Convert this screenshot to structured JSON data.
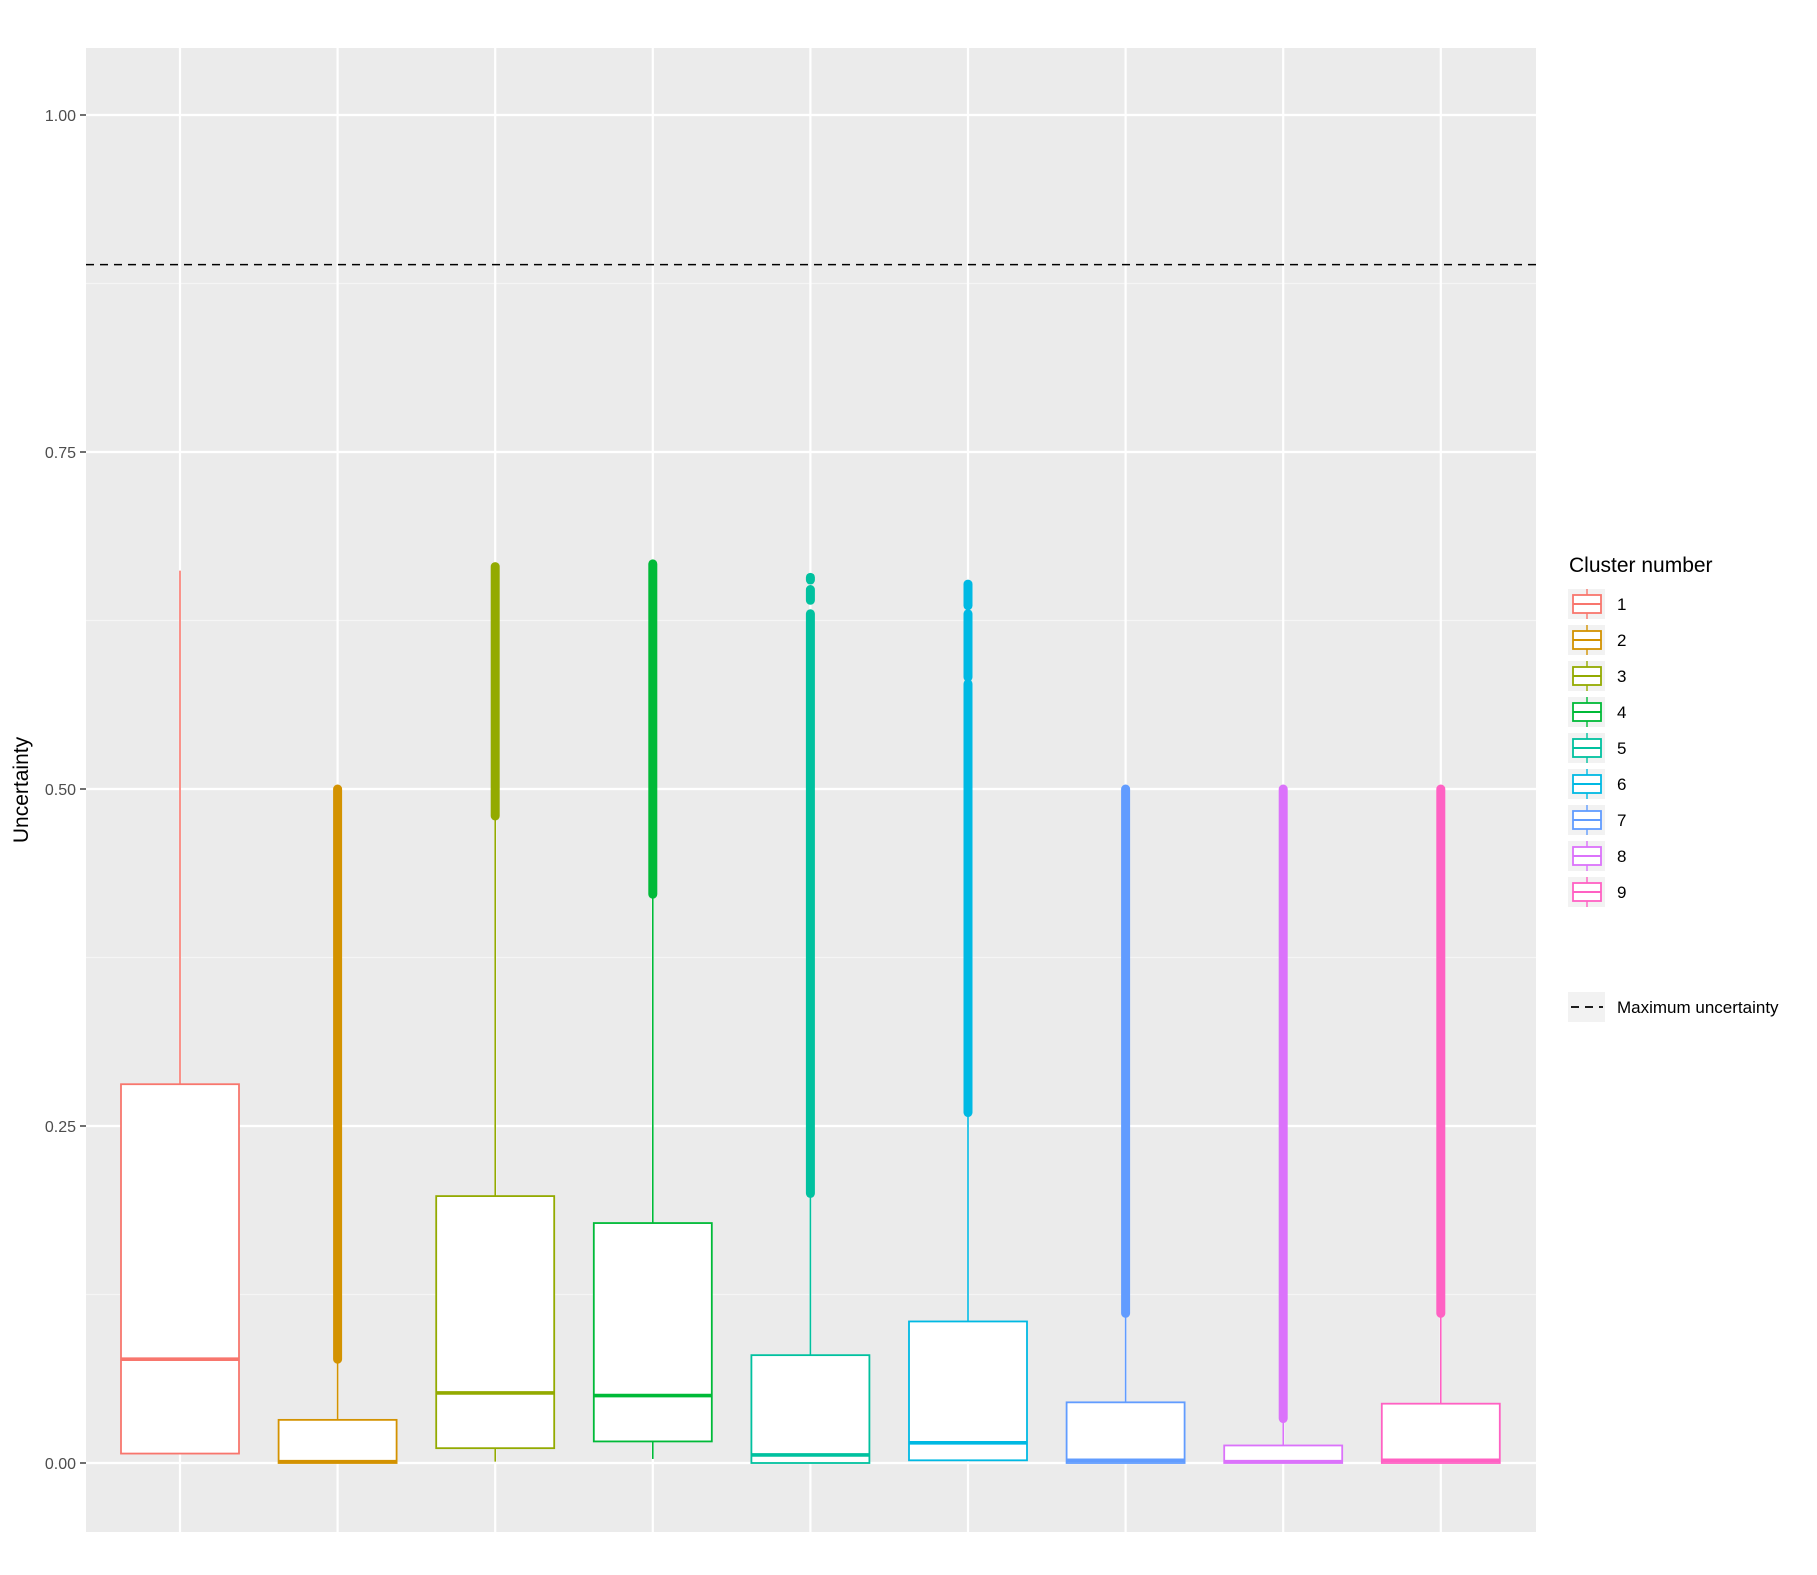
{
  "chart_data": {
    "type": "box",
    "title": "",
    "xlabel": "",
    "ylabel": "Uncertainty",
    "ylim": [
      -0.05,
      1.05
    ],
    "y_ticks": [
      0.0,
      0.25,
      0.5,
      0.75,
      1.0
    ],
    "y_tick_labels": [
      "0.00",
      "0.25",
      "0.50",
      "0.75",
      "1.00"
    ],
    "x_tick_labels": [],
    "grid": true,
    "legend": {
      "title": "Cluster number",
      "position": "right",
      "items": [
        "1",
        "2",
        "3",
        "4",
        "5",
        "6",
        "7",
        "8",
        "9"
      ]
    },
    "reference_line": {
      "label": "Maximum uncertainty",
      "y": 0.889,
      "style": "dashed",
      "color": "#000000"
    },
    "series": [
      {
        "cluster": "1",
        "color": "#F8766D",
        "min": 0.007,
        "q1": 0.007,
        "median": 0.077,
        "q3": 0.281,
        "max": 0.662,
        "outliers": []
      },
      {
        "cluster": "2",
        "color": "#D39200",
        "min": 0.0,
        "q1": 0.0,
        "median": 0.001,
        "q3": 0.032,
        "max": 0.077,
        "outliers": [
          [
            0.077,
            0.5
          ]
        ]
      },
      {
        "cluster": "3",
        "color": "#93AA00",
        "min": 0.001,
        "q1": 0.011,
        "median": 0.052,
        "q3": 0.198,
        "max": 0.48,
        "outliers": [
          [
            0.48,
            0.665
          ]
        ]
      },
      {
        "cluster": "4",
        "color": "#00BA38",
        "min": 0.003,
        "q1": 0.016,
        "median": 0.05,
        "q3": 0.178,
        "max": 0.422,
        "outliers": [
          [
            0.422,
            0.667
          ]
        ]
      },
      {
        "cluster": "5",
        "color": "#00C19F",
        "min": 0.0,
        "q1": 0.0,
        "median": 0.006,
        "q3": 0.08,
        "max": 0.2,
        "outliers": [
          [
            0.2,
            0.63
          ],
          [
            0.64,
            0.648
          ],
          [
            0.655,
            0.657
          ]
        ]
      },
      {
        "cluster": "6",
        "color": "#00B9E3",
        "min": 0.002,
        "q1": 0.002,
        "median": 0.015,
        "q3": 0.105,
        "max": 0.26,
        "outliers": [
          [
            0.26,
            0.578
          ],
          [
            0.583,
            0.63
          ],
          [
            0.636,
            0.652
          ]
        ]
      },
      {
        "cluster": "7",
        "color": "#619CFF",
        "min": 0.0,
        "q1": 0.0,
        "median": 0.002,
        "q3": 0.045,
        "max": 0.111,
        "outliers": [
          [
            0.111,
            0.5
          ]
        ]
      },
      {
        "cluster": "8",
        "color": "#DB72FB",
        "min": 0.0,
        "q1": 0.0,
        "median": 0.001,
        "q3": 0.013,
        "max": 0.033,
        "outliers": [
          [
            0.033,
            0.5
          ]
        ]
      },
      {
        "cluster": "9",
        "color": "#FF61C3",
        "min": 0.0,
        "q1": 0.0,
        "median": 0.002,
        "q3": 0.044,
        "max": 0.111,
        "outliers": [
          [
            0.111,
            0.5
          ]
        ]
      }
    ]
  }
}
